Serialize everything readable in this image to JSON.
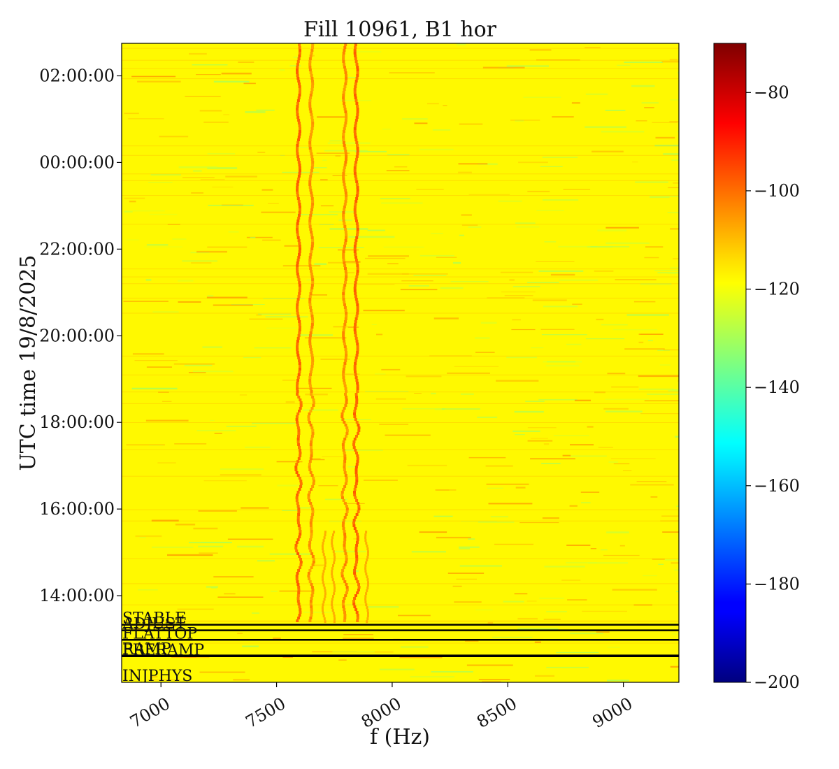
{
  "chart_data": {
    "type": "heatmap",
    "title": "Fill 10961, B1 hor",
    "xlabel": "f (Hz)",
    "ylabel": "UTC time 19/8/2025",
    "xlim": [
      6830,
      9240
    ],
    "ylim_hours": [
      12.0,
      26.75
    ],
    "x_ticks": [
      {
        "value": 7000,
        "label": "7000"
      },
      {
        "value": 7500,
        "label": "7500"
      },
      {
        "value": 8000,
        "label": "8000"
      },
      {
        "value": 8500,
        "label": "8500"
      },
      {
        "value": 9000,
        "label": "9000"
      }
    ],
    "y_ticks": [
      {
        "value": 14,
        "label": "14:00:00"
      },
      {
        "value": 16,
        "label": "16:00:00"
      },
      {
        "value": 18,
        "label": "18:00:00"
      },
      {
        "value": 20,
        "label": "20:00:00"
      },
      {
        "value": 22,
        "label": "22:00:00"
      },
      {
        "value": 24,
        "label": "00:00:00"
      },
      {
        "value": 26,
        "label": "02:00:00"
      }
    ],
    "colorbar": {
      "colormap": "jet",
      "range": [
        -200,
        -70
      ],
      "ticks": [
        {
          "value": -80,
          "label": "−80"
        },
        {
          "value": -100,
          "label": "−100"
        },
        {
          "value": -120,
          "label": "−120"
        },
        {
          "value": -140,
          "label": "−140"
        },
        {
          "value": -160,
          "label": "−160"
        },
        {
          "value": -180,
          "label": "−180"
        },
        {
          "value": -200,
          "label": "−200"
        }
      ]
    },
    "background_level": -118,
    "lines": [
      {
        "f": 7595,
        "level": -98
      },
      {
        "f": 7650,
        "level": -104
      },
      {
        "f": 7795,
        "level": -103
      },
      {
        "f": 7845,
        "level": -98
      }
    ],
    "beam_modes": [
      {
        "label": "STABLE",
        "hours": 13.33
      },
      {
        "label": "ADJUST",
        "hours": 13.2
      },
      {
        "label": "FLATTOP",
        "hours": 12.98
      },
      {
        "label": "RAMP",
        "hours": 12.62
      },
      {
        "label": "PRERAMP",
        "hours": 12.6
      },
      {
        "label": "INJPHYS",
        "hours": 12.0
      }
    ]
  }
}
